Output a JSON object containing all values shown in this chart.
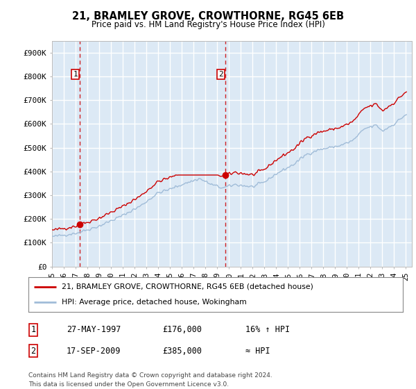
{
  "title": "21, BRAMLEY GROVE, CROWTHORNE, RG45 6EB",
  "subtitle": "Price paid vs. HM Land Registry's House Price Index (HPI)",
  "ylabel_ticks": [
    "£0",
    "£100K",
    "£200K",
    "£300K",
    "£400K",
    "£500K",
    "£600K",
    "£700K",
    "£800K",
    "£900K"
  ],
  "ytick_values": [
    0,
    100000,
    200000,
    300000,
    400000,
    500000,
    600000,
    700000,
    800000,
    900000
  ],
  "xlim_start": 1995.0,
  "xlim_end": 2025.5,
  "ylim": [
    0,
    950000
  ],
  "sale1_x": 1997.38,
  "sale1_y": 176000,
  "sale2_x": 2009.71,
  "sale2_y": 385000,
  "legend_line1": "21, BRAMLEY GROVE, CROWTHORNE, RG45 6EB (detached house)",
  "legend_line2": "HPI: Average price, detached house, Wokingham",
  "table_row1": [
    "1",
    "27-MAY-1997",
    "£176,000",
    "16% ↑ HPI"
  ],
  "table_row2": [
    "2",
    "17-SEP-2009",
    "£385,000",
    "≈ HPI"
  ],
  "footnote": "Contains HM Land Registry data © Crown copyright and database right 2024.\nThis data is licensed under the Open Government Licence v3.0.",
  "hpi_color": "#a0bcd8",
  "price_color": "#cc0000",
  "bg_color": "#dce9f5",
  "grid_color": "#ffffff",
  "vline_color": "#cc0000"
}
